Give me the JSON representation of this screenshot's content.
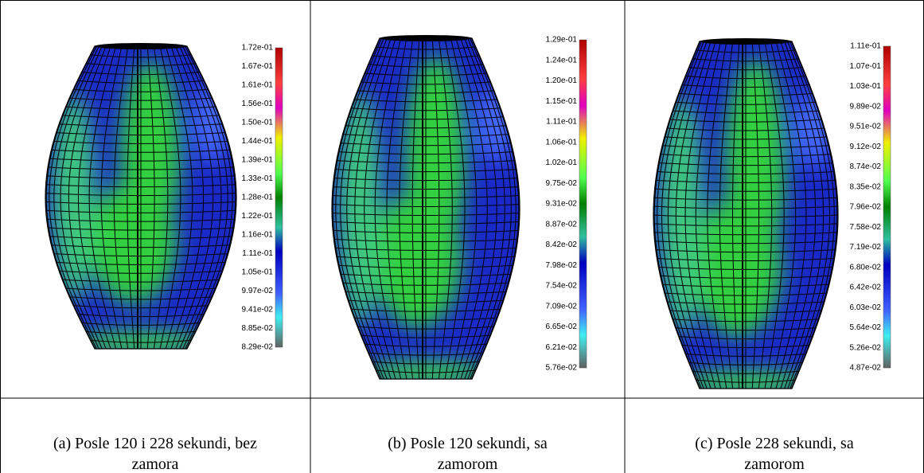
{
  "panels": [
    {
      "colorbar": [
        "1.72e-01",
        "1.67e-01",
        "1.61e-01",
        "1.56e-01",
        "1.50e-01",
        "1.44e-01",
        "1.39e-01",
        "1.33e-01",
        "1.28e-01",
        "1.22e-01",
        "1.16e-01",
        "1.11e-01",
        "1.05e-01",
        "9.97e-02",
        "9.41e-02",
        "8.85e-02",
        "8.29e-02"
      ],
      "caption": "(a) Posle 120 i 228 sekundi, bez zamora"
    },
    {
      "colorbar": [
        "1.29e-01",
        "1.24e-01",
        "1.20e-01",
        "1.15e-01",
        "1.11e-01",
        "1.06e-01",
        "1.02e-01",
        "9.75e-02",
        "9.31e-02",
        "8.87e-02",
        "8.42e-02",
        "7.98e-02",
        "7.54e-02",
        "7.09e-02",
        "6.65e-02",
        "6.21e-02",
        "5.76e-02"
      ],
      "caption": "(b) Posle 120 sekundi, sa zamorom"
    },
    {
      "colorbar": [
        "1.11e-01",
        "1.07e-01",
        "1.03e-01",
        "9.89e-02",
        "9.51e-02",
        "9.12e-02",
        "8.74e-02",
        "8.35e-02",
        "7.96e-02",
        "7.58e-02",
        "7.19e-02",
        "6.80e-02",
        "6.42e-02",
        "6.03e-02",
        "5.64e-02",
        "5.26e-02",
        "4.87e-02"
      ],
      "caption": "(c) Posle 228 sekundi, sa zamorom"
    }
  ]
}
